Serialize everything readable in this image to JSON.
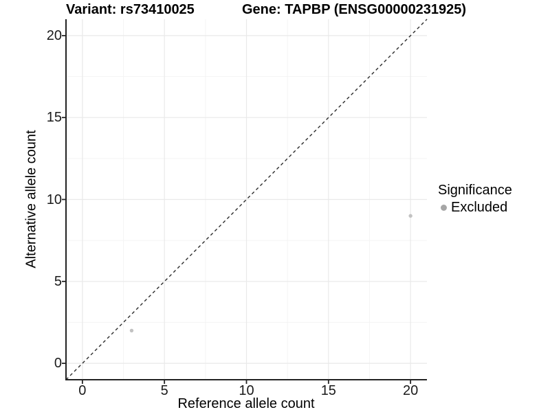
{
  "chart_data": {
    "type": "scatter",
    "titles": {
      "left": "Variant: rs73410025",
      "right": "Gene: TAPBP (ENSG00000231925)"
    },
    "xlabel": "Reference allele count",
    "ylabel": "Alternative allele count",
    "xlim": [
      -1,
      21
    ],
    "ylim": [
      -1,
      21
    ],
    "x_ticks": [
      0,
      5,
      10,
      15,
      20
    ],
    "y_ticks": [
      0,
      5,
      10,
      15,
      20
    ],
    "x_minor_ticks": [
      2.5,
      7.5,
      12.5,
      17.5
    ],
    "y_minor_ticks": [
      2.5,
      7.5,
      12.5,
      17.5
    ],
    "grid": "major+minor on white background",
    "series": [
      {
        "name": "Excluded",
        "marker_color": "#c2c2c2",
        "points": [
          {
            "x": 3,
            "y": 2
          },
          {
            "x": 20,
            "y": 9
          }
        ]
      }
    ],
    "reference_line": {
      "kind": "identity y=x",
      "from": [
        -1,
        -1
      ],
      "to": [
        21,
        21
      ],
      "style": "dashed",
      "color": "#2a2a2a"
    },
    "legend": {
      "title": "Significance",
      "position": "right",
      "items": [
        {
          "label": "Excluded",
          "key_color": "#a6a6a6"
        }
      ]
    },
    "colors": {
      "background": "#ffffff",
      "axis_line": "#222222",
      "tick_mark": "#222222",
      "grid_major": "#e9e9e9",
      "grid_minor": "#f4f4f4",
      "tick_text": "#1a1a1a",
      "title_text": "#000000"
    }
  }
}
